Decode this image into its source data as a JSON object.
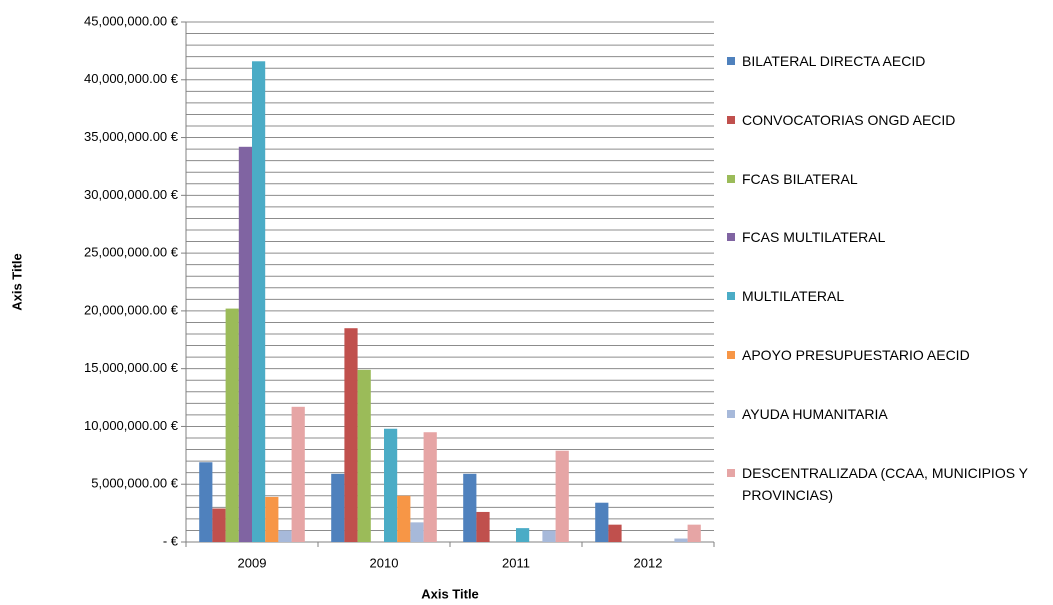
{
  "chart_data": {
    "type": "bar",
    "x_label": "Axis Title",
    "y_label": "Axis Title",
    "categories": [
      "2009",
      "2010",
      "2011",
      "2012"
    ],
    "series": [
      {
        "name": "BILATERAL DIRECTA AECID",
        "color": "#4f81bd",
        "values": [
          6900000,
          5900000,
          5900000,
          3400000
        ]
      },
      {
        "name": "CONVOCATORIAS ONGD AECID",
        "color": "#c0504d",
        "values": [
          2900000,
          18500000,
          2600000,
          1500000
        ]
      },
      {
        "name": "FCAS BILATERAL",
        "color": "#9bbb59",
        "values": [
          20200000,
          14900000,
          0,
          0
        ]
      },
      {
        "name": "FCAS MULTILATERAL",
        "color": "#8064a2",
        "values": [
          34200000,
          0,
          0,
          0
        ]
      },
      {
        "name": "MULTILATERAL",
        "color": "#4bacc6",
        "values": [
          41600000,
          9800000,
          1200000,
          0
        ]
      },
      {
        "name": "APOYO PRESUPUESTARIO AECID",
        "color": "#f79646",
        "values": [
          3900000,
          4000000,
          0,
          0
        ]
      },
      {
        "name": "AYUDA HUMANITARIA",
        "color": "#a7b9da",
        "values": [
          1000000,
          1700000,
          1000000,
          300000
        ]
      },
      {
        "name": "DESCENTRALIZADA (CCAA, MUNICIPIOS Y PROVINCIAS)",
        "color": "#e6a5a5",
        "values": [
          11700000,
          9500000,
          7900000,
          1500000
        ]
      }
    ],
    "ylim": [
      0,
      45000000
    ],
    "yticks": [
      {
        "value": 0,
        "label": "- €"
      },
      {
        "value": 5000000,
        "label": "5,000,000.00 €"
      },
      {
        "value": 10000000,
        "label": "10,000,000.00 €"
      },
      {
        "value": 15000000,
        "label": "15,000,000.00 €"
      },
      {
        "value": 20000000,
        "label": "20,000,000.00 €"
      },
      {
        "value": 25000000,
        "label": "25,000,000.00 €"
      },
      {
        "value": 30000000,
        "label": "30,000,000.00 €"
      },
      {
        "value": 35000000,
        "label": "35,000,000.00 €"
      },
      {
        "value": 40000000,
        "label": "40,000,000.00 €"
      },
      {
        "value": 45000000,
        "label": "45,000,000.00 €"
      }
    ],
    "minor_yticks": [
      1000000,
      2000000,
      3000000,
      4000000,
      6000000,
      7000000,
      8000000,
      9000000,
      11000000,
      12000000,
      13000000,
      14000000,
      16000000,
      17000000,
      18000000,
      19000000,
      21000000,
      22000000,
      23000000,
      24000000,
      26000000,
      27000000,
      28000000,
      29000000,
      31000000,
      32000000,
      33000000,
      34000000,
      36000000,
      37000000,
      38000000,
      39000000,
      41000000,
      42000000,
      43000000,
      44000000
    ],
    "grid": true,
    "legend": "right"
  }
}
